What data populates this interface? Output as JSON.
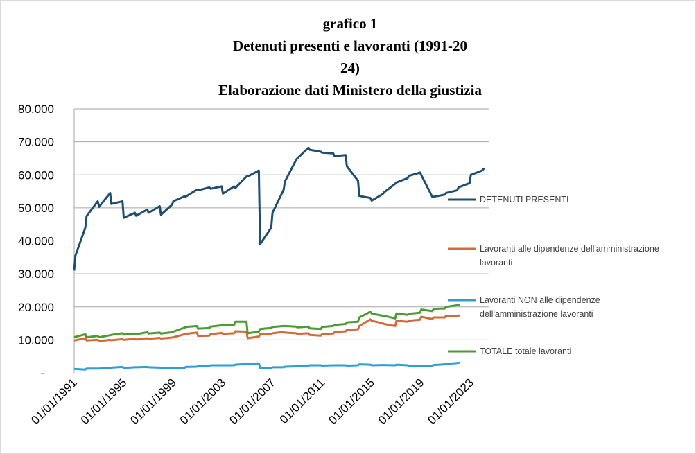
{
  "chart_data": {
    "type": "line",
    "title_lines": [
      "grafico 1",
      "Detenuti presenti e lavoranti (1991-20",
      "24)",
      "Elaborazione dati Ministero della giustizia"
    ],
    "y_ticks": [
      "-",
      "10.000",
      "20.000",
      "30.000",
      "40.000",
      "50.000",
      "60.000",
      "70.000",
      "80.000"
    ],
    "ylim": [
      0,
      80000
    ],
    "x_ticks": [
      "01/01/1991",
      "01/01/1995",
      "01/01/1999",
      "01/01/2003",
      "01/01/2007",
      "01/01/2011",
      "01/01/2015",
      "01/01/2019",
      "01/01/2023"
    ],
    "xlim": [
      1991.0,
      2024.5
    ],
    "grid": "horizontal",
    "legend_position": "right",
    "series": [
      {
        "name": "DETENUTI PRESENTI",
        "color": "#1f4e6e",
        "points": [
          [
            1991.0,
            31000
          ],
          [
            1991.1,
            35500
          ],
          [
            1991.9,
            44000
          ],
          [
            1992.0,
            47500
          ],
          [
            1992.4,
            49500
          ],
          [
            1992.9,
            52000
          ],
          [
            1993.0,
            50300
          ],
          [
            1993.9,
            54500
          ],
          [
            1994.0,
            51200
          ],
          [
            1994.9,
            52000
          ],
          [
            1995.0,
            47000
          ],
          [
            1995.9,
            48500
          ],
          [
            1996.0,
            47600
          ],
          [
            1996.9,
            49500
          ],
          [
            1997.0,
            48500
          ],
          [
            1997.9,
            50500
          ],
          [
            1998.0,
            47900
          ],
          [
            1998.9,
            51000
          ],
          [
            1999.0,
            52000
          ],
          [
            1999.9,
            53500
          ],
          [
            2000.0,
            53400
          ],
          [
            2000.9,
            55500
          ],
          [
            2001.0,
            55300
          ],
          [
            2001.9,
            56200
          ],
          [
            2002.0,
            55800
          ],
          [
            2002.9,
            56500
          ],
          [
            2003.0,
            54300
          ],
          [
            2003.9,
            56500
          ],
          [
            2004.0,
            56000
          ],
          [
            2004.9,
            59500
          ],
          [
            2005.0,
            59500
          ],
          [
            2005.9,
            61300
          ],
          [
            2006.0,
            39000
          ],
          [
            2006.9,
            44000
          ],
          [
            2007.0,
            48500
          ],
          [
            2007.9,
            55500
          ],
          [
            2008.0,
            58000
          ],
          [
            2008.9,
            64500
          ],
          [
            2009.0,
            65000
          ],
          [
            2009.9,
            68200
          ],
          [
            2010.0,
            67600
          ],
          [
            2010.9,
            67000
          ],
          [
            2011.0,
            66700
          ],
          [
            2011.9,
            66500
          ],
          [
            2012.0,
            65700
          ],
          [
            2012.9,
            66000
          ],
          [
            2013.0,
            62600
          ],
          [
            2013.9,
            58200
          ],
          [
            2014.0,
            53600
          ],
          [
            2014.9,
            53000
          ],
          [
            2015.0,
            52200
          ],
          [
            2015.9,
            54200
          ],
          [
            2016.0,
            54700
          ],
          [
            2016.9,
            57300
          ],
          [
            2017.0,
            57700
          ],
          [
            2017.9,
            59000
          ],
          [
            2018.0,
            59700
          ],
          [
            2018.9,
            60700
          ],
          [
            2019.9,
            53300
          ],
          [
            2020.9,
            54000
          ],
          [
            2021.0,
            54500
          ],
          [
            2021.9,
            55300
          ],
          [
            2022.0,
            56200
          ],
          [
            2022.9,
            57500
          ],
          [
            2023.0,
            60000
          ],
          [
            2023.9,
            61300
          ],
          [
            2024.1,
            62000
          ]
        ]
      },
      {
        "name": "Lavoranti alle dipendenze dell'amministrazione lavoranti",
        "color": "#d46a3a",
        "points": [
          [
            1991.0,
            9800
          ],
          [
            1991.9,
            10500
          ],
          [
            1992.0,
            9800
          ],
          [
            1992.9,
            10000
          ],
          [
            1993.0,
            9600
          ],
          [
            1993.9,
            10000
          ],
          [
            1994.0,
            9900
          ],
          [
            1994.9,
            10200
          ],
          [
            1995.0,
            10000
          ],
          [
            1995.9,
            10300
          ],
          [
            1996.0,
            10100
          ],
          [
            1996.9,
            10500
          ],
          [
            1997.0,
            10300
          ],
          [
            1997.9,
            10600
          ],
          [
            1998.0,
            10400
          ],
          [
            1998.9,
            10700
          ],
          [
            1999.0,
            10800
          ],
          [
            1999.9,
            11700
          ],
          [
            2000.0,
            11800
          ],
          [
            2000.9,
            12200
          ],
          [
            2001.0,
            11200
          ],
          [
            2001.9,
            11300
          ],
          [
            2002.0,
            11700
          ],
          [
            2002.9,
            12100
          ],
          [
            2003.0,
            11800
          ],
          [
            2003.9,
            12000
          ],
          [
            2004.0,
            12600
          ],
          [
            2004.9,
            12500
          ],
          [
            2005.0,
            10500
          ],
          [
            2005.9,
            11000
          ],
          [
            2006.0,
            11700
          ],
          [
            2006.9,
            11800
          ],
          [
            2007.0,
            12000
          ],
          [
            2007.9,
            12400
          ],
          [
            2008.0,
            12200
          ],
          [
            2008.9,
            12000
          ],
          [
            2009.0,
            11800
          ],
          [
            2009.9,
            12000
          ],
          [
            2010.0,
            11500
          ],
          [
            2010.9,
            11300
          ],
          [
            2011.0,
            11700
          ],
          [
            2011.9,
            11900
          ],
          [
            2012.0,
            12300
          ],
          [
            2012.9,
            12600
          ],
          [
            2013.0,
            13000
          ],
          [
            2013.9,
            13200
          ],
          [
            2014.0,
            14200
          ],
          [
            2014.9,
            16200
          ],
          [
            2015.0,
            15800
          ],
          [
            2015.9,
            15000
          ],
          [
            2016.0,
            14800
          ],
          [
            2016.9,
            14200
          ],
          [
            2017.0,
            15800
          ],
          [
            2017.9,
            15500
          ],
          [
            2018.0,
            15800
          ],
          [
            2018.9,
            16100
          ],
          [
            2019.0,
            17000
          ],
          [
            2019.9,
            16300
          ],
          [
            2020.0,
            16800
          ],
          [
            2020.9,
            16800
          ],
          [
            2021.0,
            17300
          ],
          [
            2021.9,
            17300
          ],
          [
            2022.1,
            17400
          ]
        ]
      },
      {
        "name": "Lavoranti NON alle dipendenze dell'amministrazione lavoranti",
        "color": "#2e9ed4",
        "points": [
          [
            1991.0,
            1200
          ],
          [
            1991.9,
            1000
          ],
          [
            1992.0,
            1300
          ],
          [
            1992.9,
            1300
          ],
          [
            1993.0,
            1300
          ],
          [
            1993.9,
            1500
          ],
          [
            1994.0,
            1600
          ],
          [
            1994.9,
            1800
          ],
          [
            1995.0,
            1500
          ],
          [
            1995.9,
            1700
          ],
          [
            1996.0,
            1700
          ],
          [
            1996.9,
            1800
          ],
          [
            1997.0,
            1700
          ],
          [
            1997.9,
            1600
          ],
          [
            1998.0,
            1400
          ],
          [
            1998.9,
            1600
          ],
          [
            1999.0,
            1500
          ],
          [
            1999.9,
            1500
          ],
          [
            2000.0,
            1800
          ],
          [
            2000.9,
            1900
          ],
          [
            2001.0,
            2100
          ],
          [
            2001.9,
            2100
          ],
          [
            2002.0,
            2300
          ],
          [
            2002.9,
            2300
          ],
          [
            2003.0,
            2300
          ],
          [
            2003.9,
            2300
          ],
          [
            2004.0,
            2500
          ],
          [
            2004.9,
            2700
          ],
          [
            2005.0,
            2800
          ],
          [
            2005.9,
            2900
          ],
          [
            2006.0,
            1500
          ],
          [
            2006.9,
            1500
          ],
          [
            2007.0,
            1700
          ],
          [
            2007.9,
            1700
          ],
          [
            2008.0,
            1900
          ],
          [
            2008.9,
            2000
          ],
          [
            2009.0,
            2100
          ],
          [
            2009.9,
            2200
          ],
          [
            2010.0,
            2300
          ],
          [
            2010.9,
            2300
          ],
          [
            2011.0,
            2200
          ],
          [
            2011.9,
            2300
          ],
          [
            2012.0,
            2300
          ],
          [
            2012.9,
            2300
          ],
          [
            2013.0,
            2200
          ],
          [
            2013.9,
            2300
          ],
          [
            2014.0,
            2600
          ],
          [
            2014.9,
            2500
          ],
          [
            2015.0,
            2300
          ],
          [
            2015.9,
            2400
          ],
          [
            2016.0,
            2400
          ],
          [
            2016.9,
            2300
          ],
          [
            2017.0,
            2500
          ],
          [
            2017.9,
            2300
          ],
          [
            2018.0,
            2100
          ],
          [
            2018.9,
            2000
          ],
          [
            2019.0,
            2000
          ],
          [
            2019.9,
            2200
          ],
          [
            2020.0,
            2400
          ],
          [
            2020.9,
            2600
          ],
          [
            2021.0,
            2700
          ],
          [
            2021.9,
            3000
          ],
          [
            2022.1,
            3100
          ]
        ]
      },
      {
        "name": "TOTALE totale lavoranti",
        "color": "#4e9a34",
        "points": [
          [
            1991.0,
            10800
          ],
          [
            1991.9,
            11700
          ],
          [
            1992.0,
            10800
          ],
          [
            1992.9,
            11200
          ],
          [
            1993.0,
            10800
          ],
          [
            1993.9,
            11400
          ],
          [
            1994.0,
            11500
          ],
          [
            1994.9,
            12000
          ],
          [
            1995.0,
            11600
          ],
          [
            1995.9,
            11900
          ],
          [
            1996.0,
            11700
          ],
          [
            1996.9,
            12300
          ],
          [
            1997.0,
            11900
          ],
          [
            1997.9,
            12200
          ],
          [
            1998.0,
            11900
          ],
          [
            1998.9,
            12300
          ],
          [
            1999.0,
            12500
          ],
          [
            1999.9,
            13700
          ],
          [
            2000.0,
            13900
          ],
          [
            2000.9,
            14200
          ],
          [
            2001.0,
            13400
          ],
          [
            2001.9,
            13600
          ],
          [
            2002.0,
            14000
          ],
          [
            2002.9,
            14400
          ],
          [
            2003.0,
            14400
          ],
          [
            2003.9,
            14500
          ],
          [
            2004.0,
            15500
          ],
          [
            2004.9,
            15500
          ],
          [
            2005.0,
            12000
          ],
          [
            2005.9,
            12500
          ],
          [
            2006.0,
            13300
          ],
          [
            2006.9,
            13600
          ],
          [
            2007.0,
            13900
          ],
          [
            2007.9,
            14200
          ],
          [
            2008.0,
            14200
          ],
          [
            2008.9,
            14000
          ],
          [
            2009.0,
            13800
          ],
          [
            2009.9,
            14000
          ],
          [
            2010.0,
            13500
          ],
          [
            2010.9,
            13300
          ],
          [
            2011.0,
            13900
          ],
          [
            2011.9,
            14200
          ],
          [
            2012.0,
            14500
          ],
          [
            2012.9,
            14800
          ],
          [
            2013.0,
            15300
          ],
          [
            2013.9,
            15500
          ],
          [
            2014.0,
            16800
          ],
          [
            2014.9,
            18500
          ],
          [
            2015.0,
            18000
          ],
          [
            2015.9,
            17300
          ],
          [
            2016.0,
            17300
          ],
          [
            2016.9,
            16500
          ],
          [
            2017.0,
            18000
          ],
          [
            2017.9,
            17600
          ],
          [
            2018.0,
            17900
          ],
          [
            2018.9,
            18200
          ],
          [
            2019.0,
            19200
          ],
          [
            2019.9,
            18700
          ],
          [
            2020.0,
            19400
          ],
          [
            2020.9,
            19500
          ],
          [
            2021.0,
            20000
          ],
          [
            2021.9,
            20500
          ],
          [
            2022.1,
            20700
          ]
        ]
      }
    ]
  }
}
